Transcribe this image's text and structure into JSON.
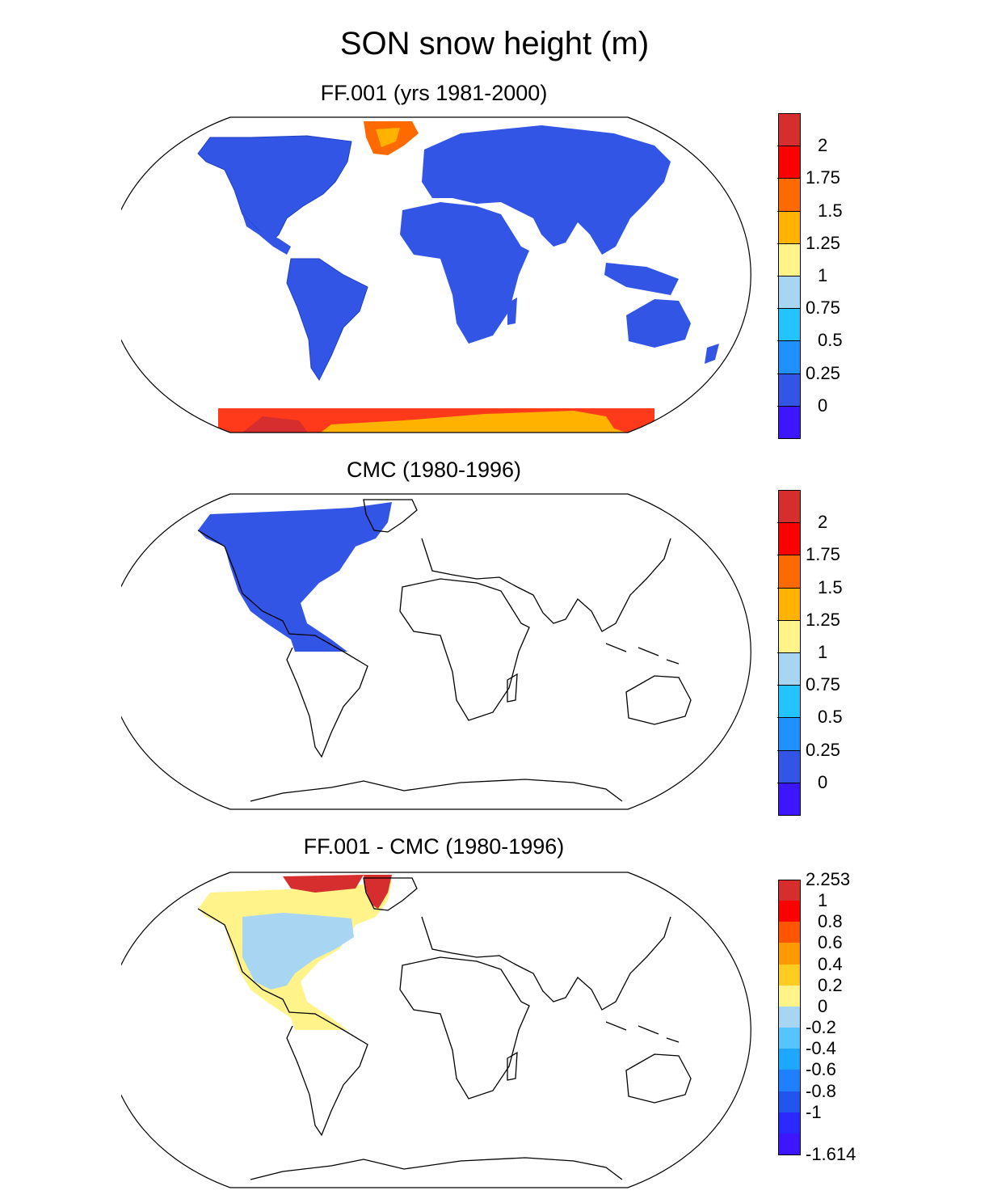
{
  "figure": {
    "title": "SON snow height (m)"
  },
  "panels": [
    {
      "title": "FF.001 (yrs 1981-2000)",
      "colorbar": {
        "colors": [
          "#d62e2e",
          "#ff0000",
          "#ff6a00",
          "#ffb300",
          "#fff38a",
          "#a8d6f2",
          "#22c3ff",
          "#2090ff",
          "#3355e6",
          "#3d16ff"
        ],
        "labels": [
          "2",
          "1.75",
          "1.5",
          "1.25",
          "1",
          "0.75",
          "0.5",
          "0.25",
          "0"
        ]
      },
      "fills": {
        "land": "#3355e6",
        "greenland": "#ff6a00",
        "antarctica_main": "#ffb300",
        "antarctica_edge": "#ff3a1a"
      }
    },
    {
      "title": "CMC (1980-1996)",
      "colorbar": {
        "colors": [
          "#d62e2e",
          "#ff0000",
          "#ff6a00",
          "#ffb300",
          "#fff38a",
          "#a8d6f2",
          "#22c3ff",
          "#2090ff",
          "#3355e6",
          "#3d16ff"
        ],
        "labels": [
          "2",
          "1.75",
          "1.5",
          "1.25",
          "1",
          "0.75",
          "0.5",
          "0.25",
          "0"
        ]
      },
      "fills": {
        "north_america": "#3355e6"
      }
    },
    {
      "title": "FF.001 - CMC (1980-1996)",
      "colorbar": {
        "colors": [
          "#d62e2e",
          "#ff0000",
          "#ff5500",
          "#ff9900",
          "#ffcc22",
          "#fff38a",
          "#a8d6f2",
          "#55c4ff",
          "#1ea7ff",
          "#1f7fff",
          "#2255ee",
          "#2a2aff",
          "#3d16ff"
        ],
        "labels": [
          "2.253",
          "1",
          "0.8",
          "0.6",
          "0.4",
          "0.2",
          "0",
          "-0.2",
          "-0.4",
          "-0.6",
          "-0.8",
          "-1",
          "-1.614"
        ]
      },
      "fills": {
        "greenland": "#d62e2e",
        "canada_north": "#fff38a",
        "conus": "#a8d6f2",
        "margin": "#fff38a"
      }
    }
  ]
}
